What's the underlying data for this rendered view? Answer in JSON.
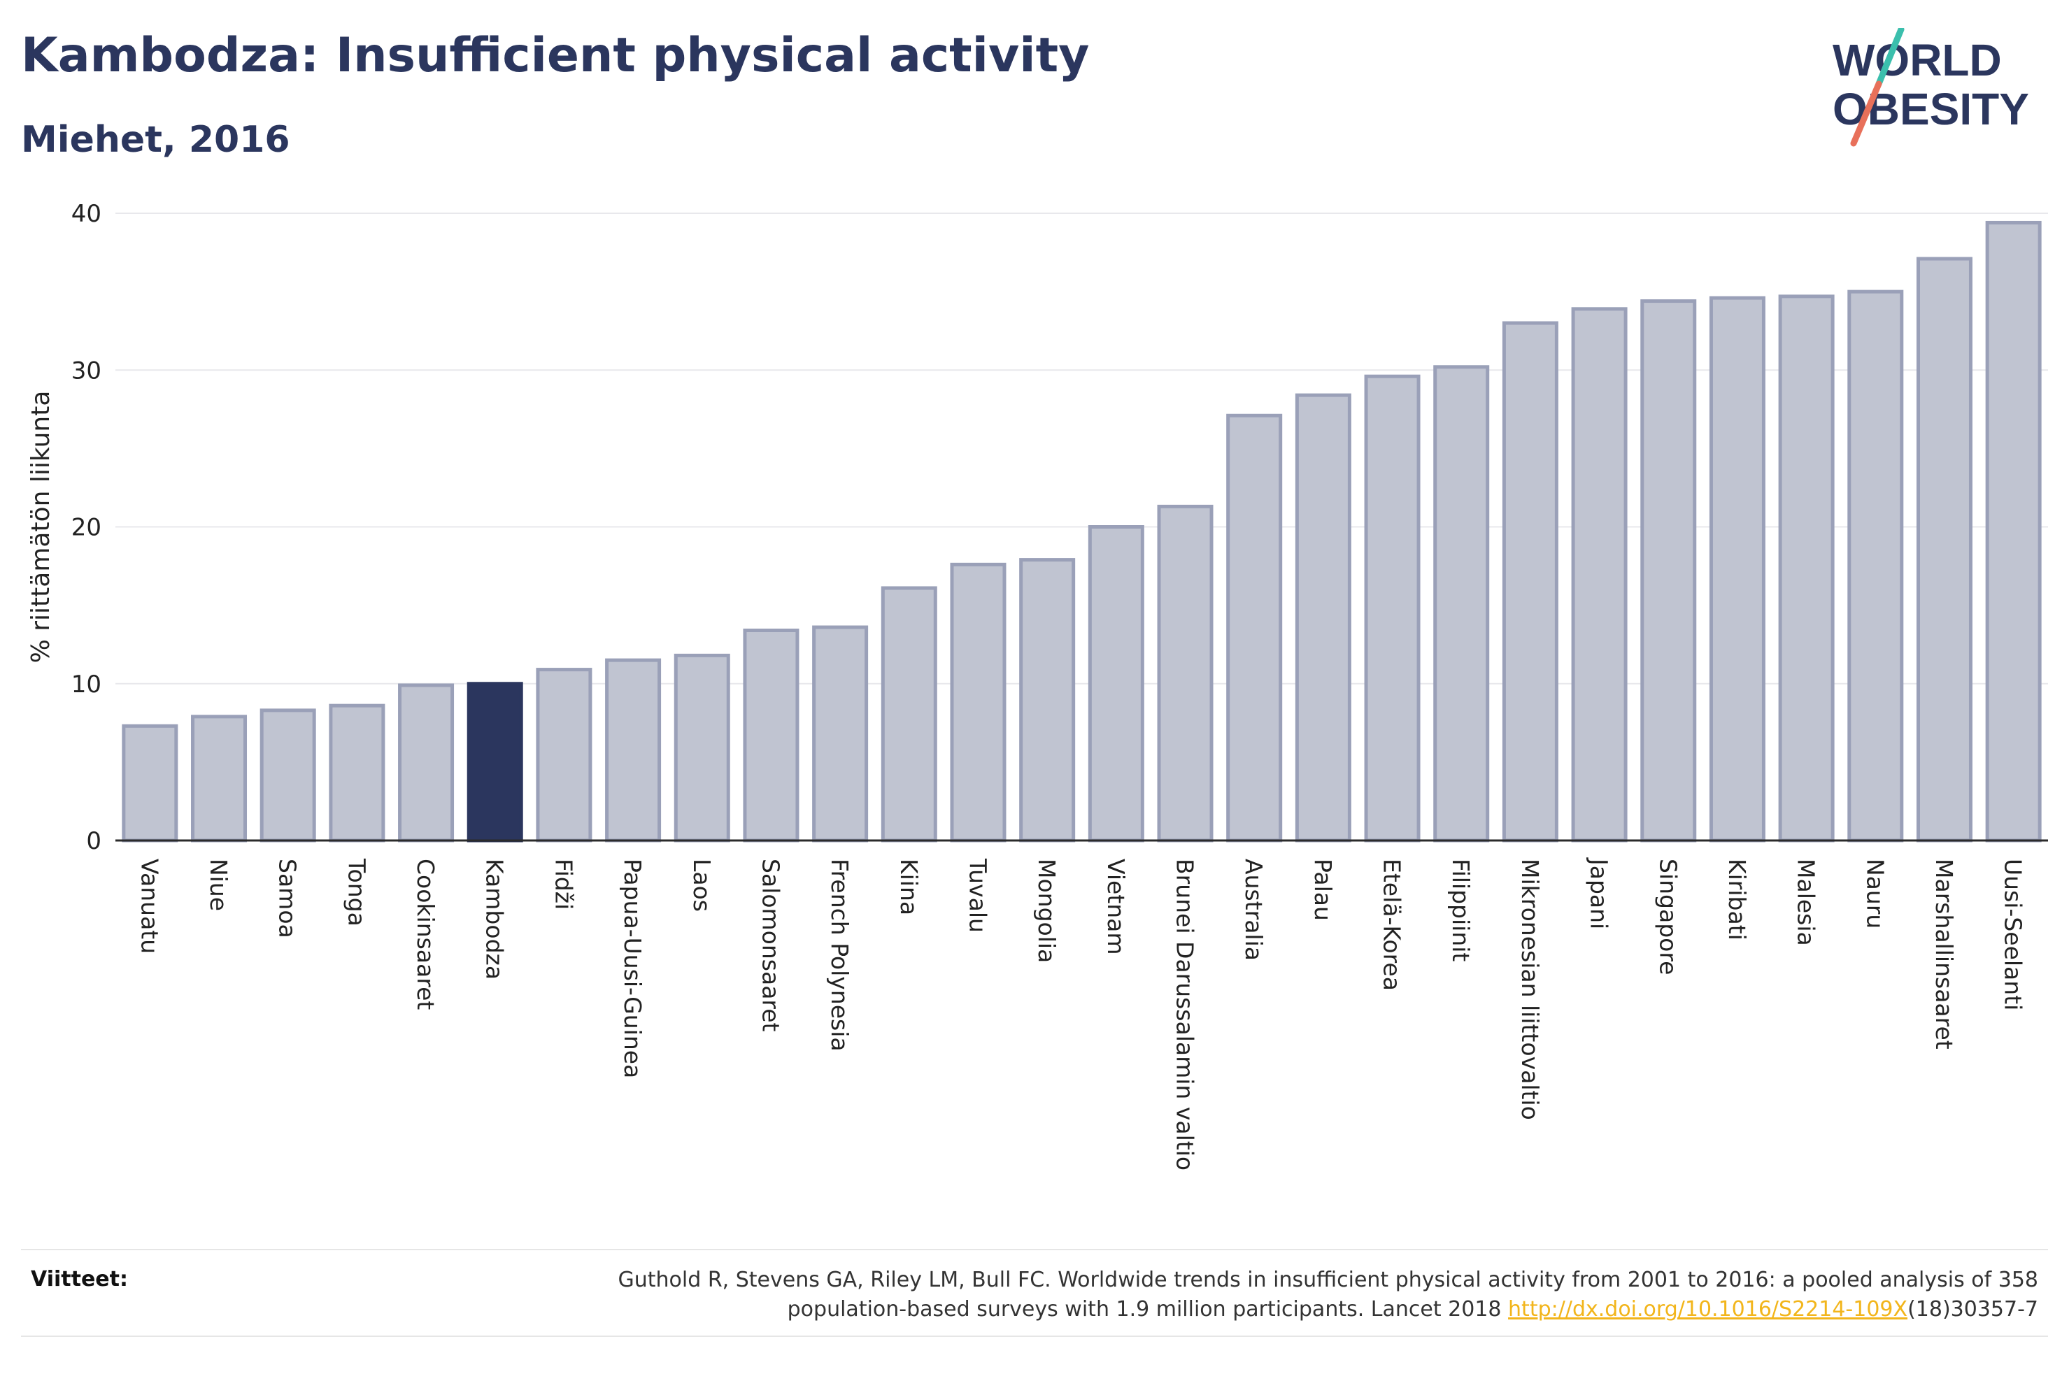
{
  "header": {
    "title": "Kambodza: Insufficient physical activity",
    "subtitle": "Miehet, 2016"
  },
  "logo": {
    "line1": "WORLD",
    "line2": "OBESITY"
  },
  "colors": {
    "bar": "#c0c4d1",
    "bar_stroke": "#9aa0b8",
    "highlight": "#2b365e",
    "grid": "#e8e8ec",
    "axis": "#2b2b2b",
    "logo_slash_top": "#3bbfad",
    "logo_slash_bottom": "#e8705a"
  },
  "chart_data": {
    "type": "bar",
    "ylabel": "% riittämätön liikunta",
    "ylim": [
      0,
      40
    ],
    "yticks": [
      0,
      10,
      20,
      30,
      40
    ],
    "grid": true,
    "highlight": "Kambodza",
    "categories": [
      "Vanuatu",
      "Niue",
      "Samoa",
      "Tonga",
      "Cookinsaaret",
      "Kambodza",
      "Fidži",
      "Papua-Uusi-Guinea",
      "Laos",
      "Salomonsaaret",
      "French Polynesia",
      "Kiina",
      "Tuvalu",
      "Mongolia",
      "Vietnam",
      "Brunei Darussalamin valtio",
      "Australia",
      "Palau",
      "Etelä-Korea",
      "Filippiinit",
      "Mikronesian liittovaltio",
      "Japani",
      "Singapore",
      "Kiribati",
      "Malesia",
      "Nauru",
      "Marshallinsaaret",
      "Uusi-Seelanti"
    ],
    "values": [
      7.3,
      7.9,
      8.3,
      8.6,
      9.9,
      10.0,
      10.9,
      11.5,
      11.8,
      13.4,
      13.6,
      16.1,
      17.6,
      17.9,
      20.0,
      21.3,
      27.1,
      28.4,
      29.6,
      30.2,
      33.0,
      33.9,
      34.4,
      34.6,
      34.7,
      35.0,
      37.1,
      39.4
    ]
  },
  "footer": {
    "ref_label": "Viitteet:",
    "ref_text_1": "Guthold R, Stevens GA, Riley LM, Bull FC. Worldwide trends in insufficient physical activity from 2001 to 2016: a pooled analysis of 358",
    "ref_text_2": "population-based surveys with 1.9 million participants. Lancet 2018 ",
    "ref_link": "http://dx.doi.org/10.1016/S2214-109X",
    "ref_text_3": "(18)30357-7"
  }
}
